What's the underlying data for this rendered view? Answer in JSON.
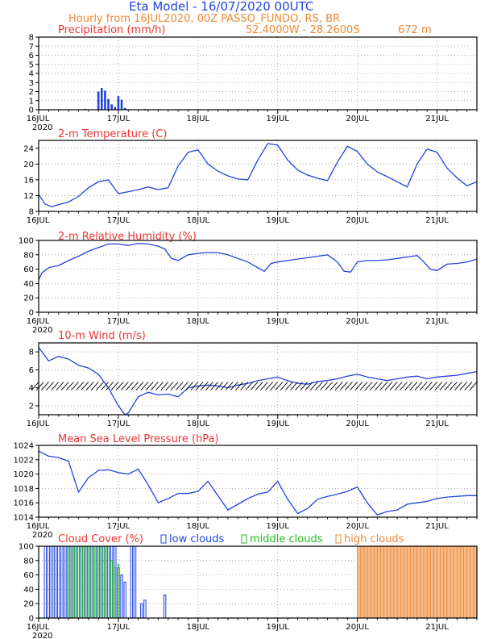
{
  "header": {
    "title": "Eta Model - 16/07/2020 00UTC",
    "subtitle": "Hourly from 16JUL2020, 00Z  PASSO_FUNDO, RS, BR",
    "coords": "52.4000W - 28.2600S",
    "elevation": "672  m"
  },
  "x_axis": {
    "days": [
      "16JUL",
      "17JUL",
      "18JUL",
      "19JUL",
      "20JUL",
      "21JUL"
    ],
    "year": "2020",
    "hours_total": 132
  },
  "colors": {
    "line": "#2244dd",
    "title": "#ee3333",
    "header_blue": "#2244dd",
    "header_orange": "#ee8833",
    "low": "#2244dd",
    "mid": "#22bb22",
    "high": "#ee8833",
    "high_fill": "#f5b98a",
    "grid": "#999999"
  },
  "chart_data": [
    {
      "id": "precip",
      "type": "bar",
      "title": "Precipitation (mm/h)",
      "ylim": [
        0,
        8
      ],
      "yticks": [
        0,
        1,
        2,
        3,
        4,
        5,
        6,
        7,
        8
      ],
      "x_hours": [
        14,
        18,
        19,
        20,
        21,
        22,
        23,
        24,
        25,
        26,
        32
      ],
      "values": [
        0.1,
        2.0,
        2.4,
        2.1,
        1.2,
        0.6,
        0.3,
        1.5,
        1.1,
        0.2,
        0.1
      ]
    },
    {
      "id": "temperature",
      "type": "line",
      "title": "2-m Temperature (C)",
      "ylim": [
        8,
        26
      ],
      "yticks": [
        8,
        12,
        16,
        20,
        24
      ],
      "x": [
        0,
        2,
        4,
        6,
        9,
        12,
        15,
        18,
        21,
        24,
        27,
        30,
        33,
        36,
        39,
        42,
        45,
        48,
        51,
        54,
        57,
        60,
        63,
        66,
        69,
        72,
        75,
        78,
        81,
        84,
        87,
        90,
        93,
        96,
        99,
        102,
        105,
        108,
        111,
        114,
        117,
        120,
        123,
        126,
        129,
        132
      ],
      "values": [
        12.3,
        9.8,
        9.2,
        9.7,
        10.4,
        11.8,
        14.0,
        15.5,
        16.0,
        12.5,
        13.0,
        13.5,
        14.2,
        13.5,
        14.0,
        19.5,
        23.0,
        23.6,
        20.0,
        18.2,
        17.0,
        16.2,
        16.0,
        21.0,
        25.2,
        24.8,
        21.0,
        18.5,
        17.2,
        16.4,
        15.8,
        20.5,
        24.5,
        23.2,
        20.0,
        18.0,
        16.8,
        15.5,
        14.2,
        20.0,
        23.8,
        23.0,
        19.0,
        16.5,
        14.5,
        15.5
      ]
    },
    {
      "id": "humidity",
      "type": "line",
      "title": "2-m Relative Humidity (%)",
      "ylim": [
        0,
        100
      ],
      "yticks": [
        0,
        20,
        40,
        60,
        80,
        100
      ],
      "x": [
        0,
        1,
        3,
        6,
        9,
        12,
        15,
        18,
        21,
        24,
        27,
        30,
        33,
        36,
        38,
        40,
        42,
        45,
        48,
        51,
        54,
        57,
        60,
        63,
        66,
        68,
        70,
        72,
        75,
        78,
        81,
        84,
        87,
        90,
        92,
        94,
        96,
        99,
        102,
        105,
        108,
        111,
        114,
        116,
        118,
        120,
        123,
        126,
        129,
        132
      ],
      "values": [
        45,
        55,
        62,
        65,
        72,
        78,
        85,
        90,
        95,
        95,
        93,
        96,
        95,
        92,
        88,
        75,
        72,
        80,
        82,
        83,
        83,
        80,
        75,
        70,
        62,
        57,
        68,
        70,
        72,
        74,
        76,
        78,
        80,
        70,
        57,
        56,
        70,
        72,
        72,
        73,
        75,
        77,
        79,
        70,
        60,
        58,
        67,
        68,
        70,
        74
      ]
    },
    {
      "id": "wind",
      "type": "line",
      "title": "10-m Wind (m/s)",
      "ylim": [
        1,
        9
      ],
      "yticks": [
        2,
        4,
        6,
        8
      ],
      "x": [
        0,
        3,
        6,
        9,
        12,
        15,
        18,
        21,
        24,
        26,
        27,
        30,
        33,
        36,
        39,
        42,
        45,
        48,
        51,
        54,
        57,
        60,
        63,
        66,
        69,
        72,
        75,
        78,
        81,
        84,
        87,
        90,
        93,
        96,
        99,
        102,
        105,
        108,
        111,
        114,
        117,
        120,
        123,
        126,
        129,
        132
      ],
      "values": [
        8.5,
        7.0,
        7.5,
        7.2,
        6.5,
        6.2,
        5.5,
        4.0,
        2.0,
        1.0,
        1.2,
        3.0,
        3.5,
        3.2,
        3.3,
        3.0,
        4.0,
        4.2,
        4.3,
        4.2,
        4.0,
        4.3,
        4.5,
        4.8,
        5.0,
        5.2,
        4.8,
        4.5,
        4.4,
        4.7,
        4.8,
        5.0,
        5.3,
        5.5,
        5.2,
        5.0,
        4.8,
        5.0,
        5.2,
        5.3,
        5.0,
        5.2,
        5.3,
        5.4,
        5.6,
        5.8
      ]
    },
    {
      "id": "pressure",
      "type": "line",
      "title": "Mean Sea Level Pressure (hPa)",
      "ylim": [
        1014,
        1024
      ],
      "yticks": [
        1014,
        1016,
        1018,
        1020,
        1022,
        1024
      ],
      "x": [
        0,
        3,
        6,
        9,
        12,
        15,
        18,
        21,
        24,
        27,
        30,
        33,
        36,
        39,
        42,
        45,
        48,
        51,
        54,
        57,
        60,
        63,
        66,
        69,
        72,
        75,
        78,
        81,
        84,
        87,
        90,
        93,
        96,
        99,
        102,
        105,
        108,
        111,
        114,
        117,
        120,
        123,
        126,
        129,
        132
      ],
      "values": [
        1023.2,
        1022.5,
        1022.3,
        1021.8,
        1017.5,
        1019.5,
        1020.5,
        1020.6,
        1020.2,
        1020.0,
        1020.7,
        1018.5,
        1016.0,
        1016.6,
        1017.3,
        1017.3,
        1017.6,
        1019.0,
        1017.0,
        1015.0,
        1015.8,
        1016.6,
        1017.2,
        1017.5,
        1019.0,
        1016.5,
        1014.5,
        1015.2,
        1016.5,
        1016.9,
        1017.2,
        1017.6,
        1018.2,
        1016.0,
        1014.3,
        1014.8,
        1015.0,
        1015.8,
        1016.0,
        1016.2,
        1016.6,
        1016.8,
        1016.9,
        1017.0,
        1017.0
      ]
    },
    {
      "id": "clouds",
      "type": "bar",
      "title": "Cloud Cover (%)",
      "legend": [
        "low clouds",
        "middle clouds",
        "high clouds"
      ],
      "ylim": [
        0,
        100
      ],
      "yticks": [
        0,
        20,
        40,
        60,
        80,
        100
      ],
      "low_hours": [
        2,
        3,
        4,
        5,
        6,
        7,
        8,
        9,
        10,
        11,
        12,
        13,
        14,
        15,
        16,
        17,
        18,
        19,
        20,
        21,
        22,
        23,
        24,
        25,
        26,
        28,
        29,
        31,
        32,
        38
      ],
      "low_values": [
        100,
        100,
        100,
        100,
        100,
        100,
        100,
        100,
        100,
        100,
        100,
        100,
        100,
        100,
        100,
        100,
        100,
        100,
        100,
        100,
        100,
        100,
        70,
        60,
        50,
        100,
        100,
        20,
        25,
        32
      ],
      "mid_hours": [
        9,
        10,
        11,
        12,
        13,
        14,
        15,
        16,
        17,
        18,
        19,
        20,
        21,
        22,
        23,
        24
      ],
      "mid_values": [
        100,
        100,
        100,
        100,
        100,
        100,
        100,
        100,
        100,
        100,
        100,
        100,
        100,
        80,
        70,
        75
      ],
      "high_start": 96,
      "high_end": 132,
      "high_value": 100
    }
  ]
}
